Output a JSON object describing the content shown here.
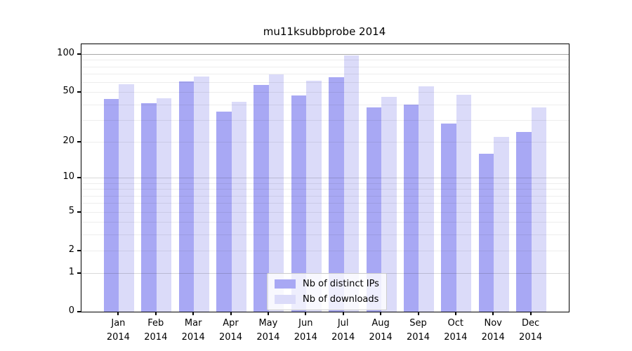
{
  "chart_data": {
    "type": "bar",
    "title": "mu11ksubbprobe 2014",
    "year": "2014",
    "months": [
      "Jan",
      "Feb",
      "Mar",
      "Apr",
      "May",
      "Jun",
      "Jul",
      "Aug",
      "Sep",
      "Oct",
      "Nov",
      "Dec"
    ],
    "categories": [
      "Jan 2014",
      "Feb 2014",
      "Mar 2014",
      "Apr 2014",
      "May 2014",
      "Jun 2014",
      "Jul 2014",
      "Aug 2014",
      "Sep 2014",
      "Oct 2014",
      "Nov 2014",
      "Dec 2014"
    ],
    "series": [
      {
        "name": "Nb of distinct IPs",
        "color": "#a8a8f4",
        "values": [
          44,
          41,
          61,
          35,
          57,
          47,
          66,
          38,
          40,
          28,
          16,
          24
        ]
      },
      {
        "name": "Nb of downloads",
        "color": "#dbdbf9",
        "values": [
          58,
          45,
          67,
          42,
          69,
          62,
          97,
          46,
          56,
          48,
          22,
          38
        ]
      }
    ],
    "y_ticks": [
      0,
      1,
      2,
      5,
      10,
      20,
      50,
      100
    ],
    "y_scale": "log1p",
    "ylim": [
      0,
      120
    ],
    "xlabel": "",
    "ylabel": "",
    "grid": true,
    "legend_position": "lower center"
  }
}
